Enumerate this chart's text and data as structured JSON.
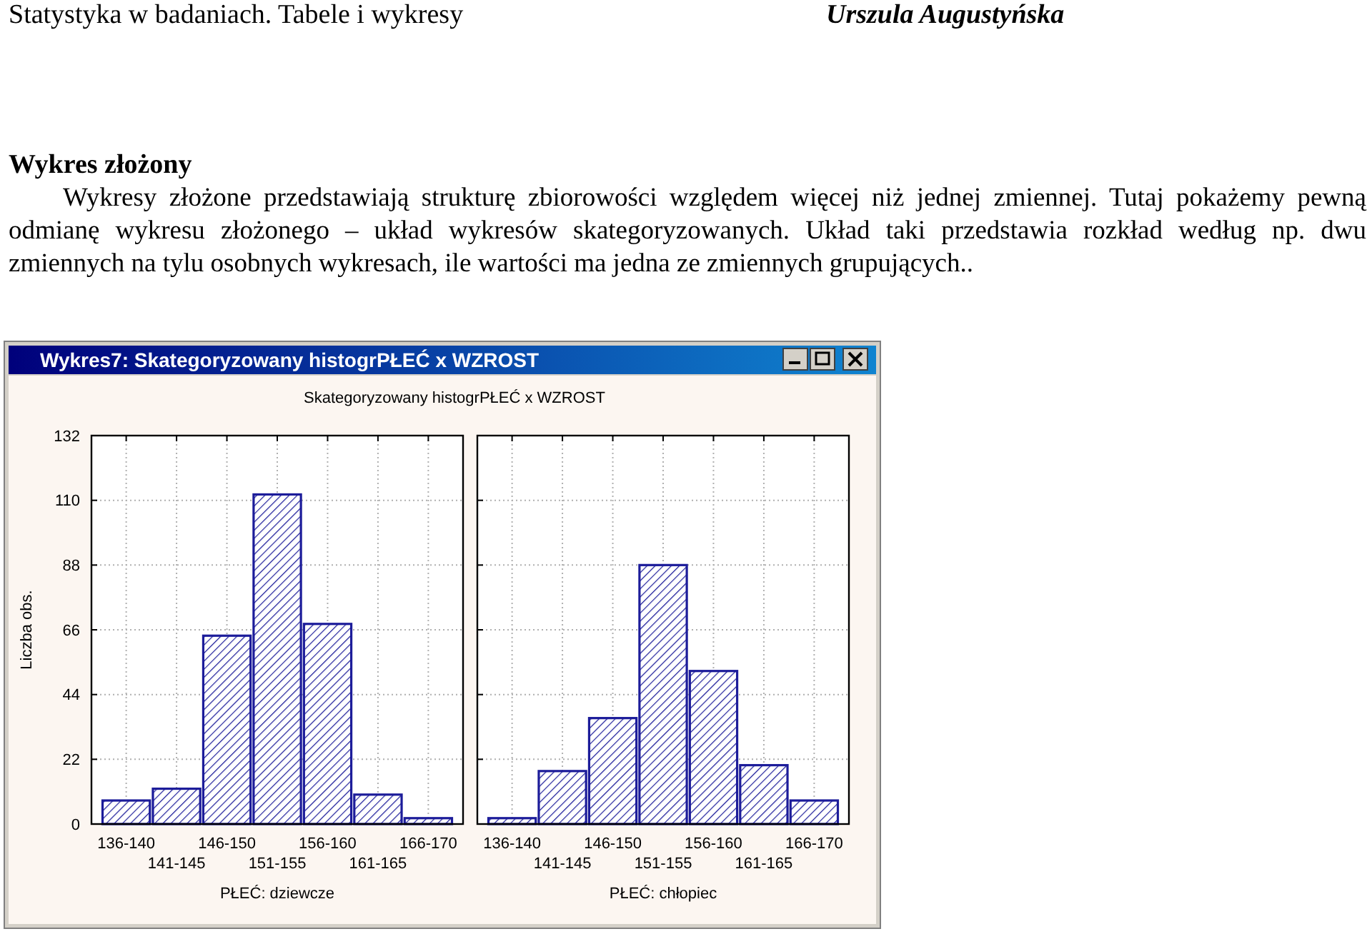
{
  "chart_data": [
    {
      "type": "bar",
      "title": "Skategoryzowany histogrPŁEĆ x WZROST",
      "xlabel": "PŁEĆ: dziewcze",
      "ylabel": "Liczba obs.",
      "categories": [
        "136-140",
        "141-145",
        "146-150",
        "151-155",
        "156-160",
        "161-165",
        "166-170"
      ],
      "values": [
        8,
        12,
        64,
        112,
        68,
        10,
        2
      ],
      "color": "#1c1c9a",
      "ylim": [
        0,
        132
      ],
      "yticks": [
        0,
        22,
        44,
        66,
        88,
        110,
        132
      ],
      "grid": true,
      "annotations": [
        "Statystyka w badaniach. Tabele i wykresy",
        "Urszula Augustyńska",
        "Wykres złożony",
        "Wykresy złożone przedstawiają strukturę zbiorowości względem więcej niż jednej zmiennej. Tutaj pokażemy pewną odmianę wykresu złożonego – układ wykresów skategoryzowanych. Układ taki przedstawia rozkład według np. dwu zmiennych na tylu osobnych wykresach, ile wartości ma jedna ze zmiennych grupujących..",
        "Wykres7: Skategoryzowany histogrPŁEĆ x WZROST"
      ]
    },
    {
      "type": "bar",
      "xlabel": "PŁEĆ: chłopiec",
      "categories": [
        "136-140",
        "141-145",
        "146-150",
        "151-155",
        "156-160",
        "161-165",
        "166-170"
      ],
      "values": [
        2,
        18,
        36,
        88,
        52,
        20,
        8
      ],
      "color": "#1c1c9a",
      "ylim": [
        0,
        132
      ],
      "yticks": [
        0,
        22,
        44,
        66,
        88,
        110,
        132
      ],
      "grid": true,
      "tick_labels": "x"
    }
  ]
}
